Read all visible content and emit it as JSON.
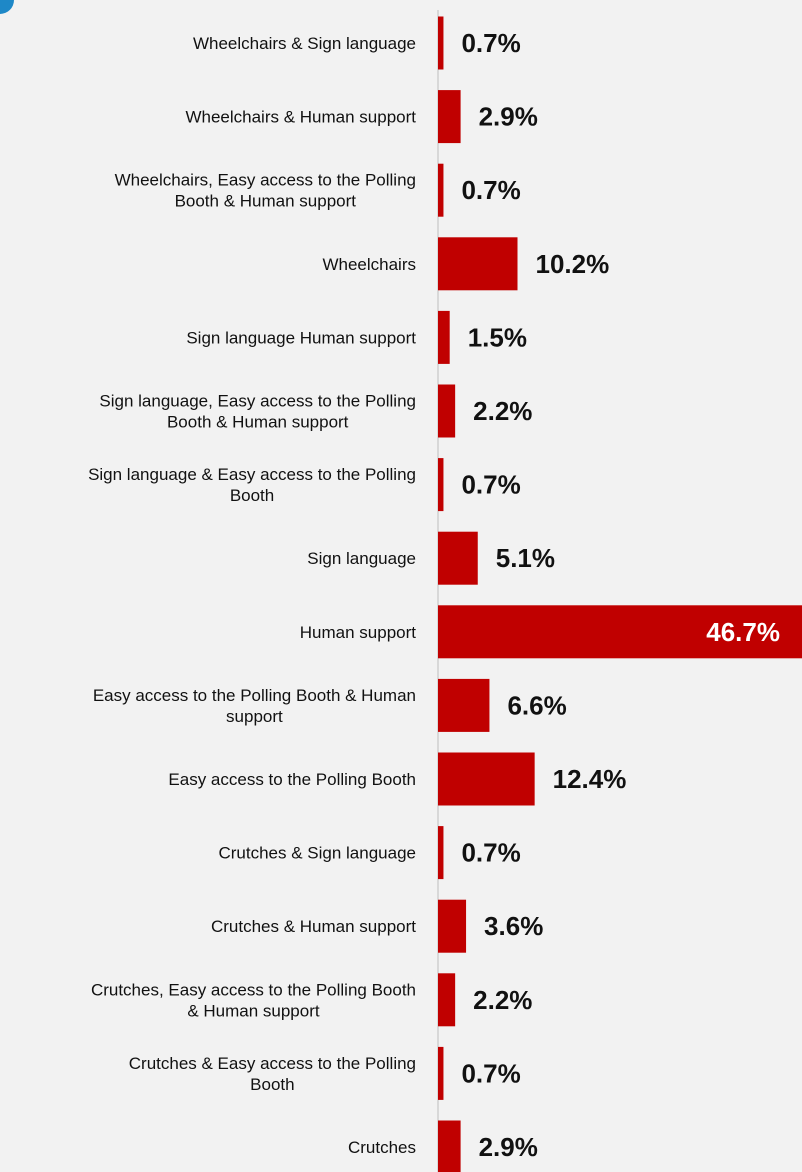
{
  "chart_data": {
    "type": "bar",
    "orientation": "horizontal",
    "title": "",
    "xlabel": "",
    "ylabel": "",
    "unit": "%",
    "xlim": [
      0,
      46.7
    ],
    "grid": false,
    "bar_color": "#c00000",
    "categories": [
      "Wheelchairs & Sign language",
      "Wheelchairs & Human support",
      "Wheelchairs, Easy access to the Polling Booth & Human support",
      "Wheelchairs",
      "Sign language Human support",
      "Sign language, Easy access to the Polling Booth & Human support",
      "Sign language & Easy access to the Polling Booth",
      "Sign language",
      "Human support",
      "Easy access to the Polling Booth & Human support",
      "Easy access to the Polling Booth",
      "Crutches & Sign language",
      "Crutches & Human support",
      "Crutches, Easy access to the Polling Booth & Human support",
      "Crutches & Easy access to the Polling Booth",
      "Crutches"
    ],
    "category_lines": [
      [
        "Wheelchairs & Sign language"
      ],
      [
        "Wheelchairs & Human support"
      ],
      [
        "Wheelchairs, Easy access to the Polling",
        "Booth & Human support"
      ],
      [
        "Wheelchairs"
      ],
      [
        "Sign language Human support"
      ],
      [
        "Sign language, Easy access to the Polling",
        "Booth & Human support"
      ],
      [
        "Sign language & Easy access to the Polling",
        "Booth"
      ],
      [
        "Sign language"
      ],
      [
        "Human support"
      ],
      [
        "Easy access to the Polling Booth & Human",
        "support"
      ],
      [
        "Easy access to the Polling Booth"
      ],
      [
        "Crutches & Sign language"
      ],
      [
        "Crutches & Human support"
      ],
      [
        "Crutches, Easy access to the Polling Booth",
        "& Human support"
      ],
      [
        "Crutches & Easy access to the Polling",
        "Booth"
      ],
      [
        "Crutches"
      ]
    ],
    "values": [
      0.7,
      2.9,
      0.7,
      10.2,
      1.5,
      2.2,
      0.7,
      5.1,
      46.7,
      6.6,
      12.4,
      0.7,
      3.6,
      2.2,
      0.7,
      2.9
    ],
    "data_labels": [
      "0.7%",
      "2.9%",
      "0.7%",
      "10.2%",
      "1.5%",
      "2.2%",
      "0.7%",
      "5.1%",
      "46.7%",
      "6.6%",
      "12.4%",
      "0.7%",
      "3.6%",
      "2.2%",
      "0.7%",
      "2.9%"
    ]
  }
}
